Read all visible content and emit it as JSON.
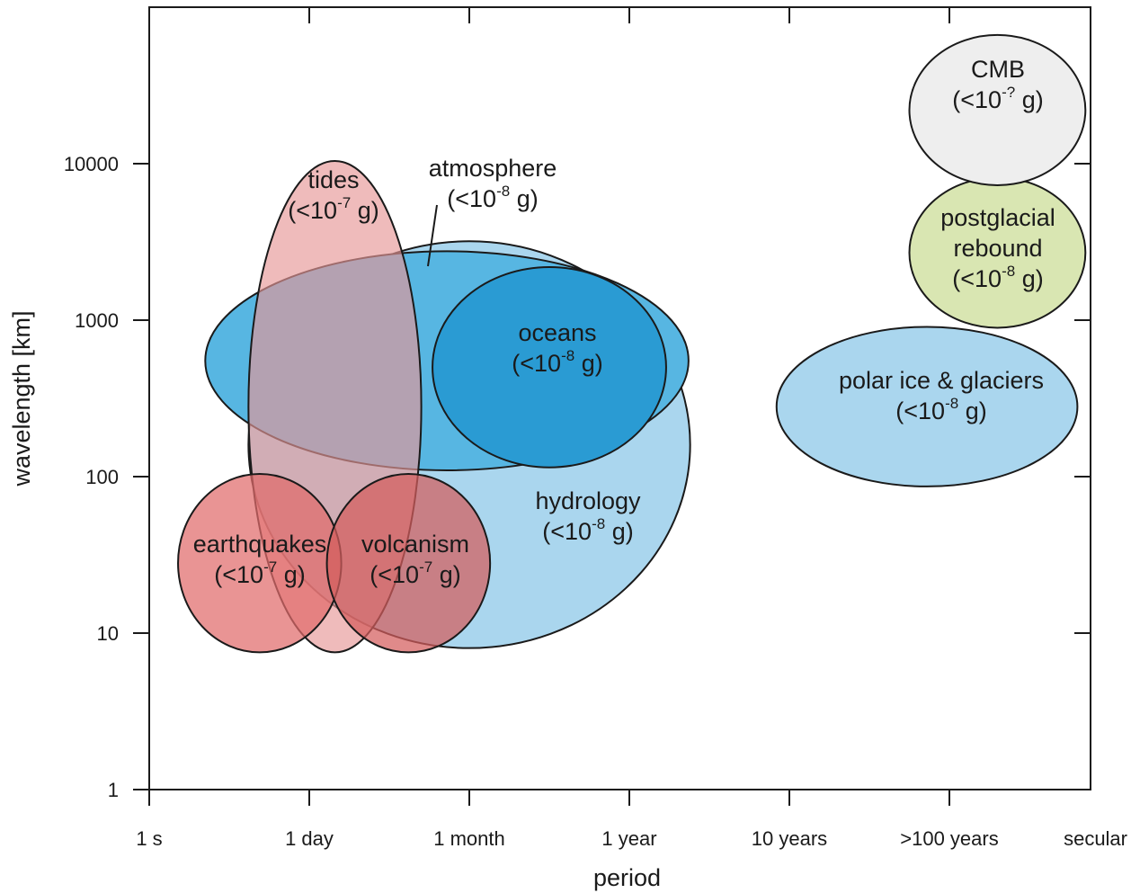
{
  "chart_data": {
    "type": "region-ellipse",
    "xlabel": "period",
    "ylabel": "wavelength [km]",
    "x_axis": {
      "scale": "categorical",
      "ticks": [
        "1 s",
        "1 day",
        "1 month",
        "1 year",
        "10 years",
        ">100 years",
        "secular"
      ]
    },
    "y_axis": {
      "scale": "log",
      "ylim": [
        1,
        100000
      ],
      "ticks": [
        {
          "value": 1,
          "label": "1"
        },
        {
          "value": 10,
          "label": "10"
        },
        {
          "value": 100,
          "label": "100"
        },
        {
          "value": 1000,
          "label": "1000"
        },
        {
          "value": 10000,
          "label": "10000"
        }
      ]
    },
    "regions": [
      {
        "name": "hydrology",
        "label": [
          "hydrology",
          "(<10",
          "-8",
          " g)"
        ],
        "x_center_tick": 2.0,
        "x_half_span_ticks": 1.38,
        "y_center": 160,
        "y_log_half_span": 1.3,
        "color": "#aad6ee"
      },
      {
        "name": "atmosphere",
        "label": [
          "atmosphere",
          "(<10",
          "-8",
          " g)"
        ],
        "x_center_tick": 1.86,
        "x_half_span_ticks": 1.51,
        "y_center": 550,
        "y_log_half_span": 0.7,
        "color": "#57b6e2"
      },
      {
        "name": "oceans",
        "label": [
          "oceans",
          "(<10",
          "-8",
          " g)"
        ],
        "x_center_tick": 2.5,
        "x_half_span_ticks": 0.73,
        "y_center": 500,
        "y_log_half_span": 0.64,
        "color": "#2a9bd3"
      },
      {
        "name": "tides",
        "label": [
          "tides",
          "(<10",
          "-7",
          " g)"
        ],
        "x_center_tick": 1.16,
        "x_half_span_ticks": 0.54,
        "y_center": 280,
        "y_log_half_span": 1.57,
        "color": "#e79696",
        "opacity": 0.65
      },
      {
        "name": "earthquakes",
        "label": [
          "earthquakes",
          "(<10",
          "-7",
          " g)"
        ],
        "x_center_tick": 0.69,
        "x_half_span_ticks": 0.51,
        "y_center": 28,
        "y_log_half_span": 0.57,
        "color": "#e06b6b",
        "opacity": 0.72
      },
      {
        "name": "volcanism",
        "label": [
          "volcanism",
          "(<10",
          "-7",
          " g)"
        ],
        "x_center_tick": 1.62,
        "x_half_span_ticks": 0.51,
        "y_center": 28,
        "y_log_half_span": 0.57,
        "color": "#d45d5d",
        "opacity": 0.72
      },
      {
        "name": "polar ice & glaciers",
        "label": [
          "polar ice & glaciers",
          "(<10",
          "-8",
          " g)"
        ],
        "x_center_tick": 4.86,
        "x_half_span_ticks": 0.94,
        "y_center": 280,
        "y_log_half_span": 0.51,
        "color": "#aad6ee"
      },
      {
        "name": "postglacial rebound",
        "label": [
          "postglacial",
          "rebound",
          "(<10",
          "-8",
          " g)"
        ],
        "x_center_tick": 5.3,
        "x_half_span_ticks": 0.55,
        "y_center": 2700,
        "y_log_half_span": 0.48,
        "color": "#d9e6b2"
      },
      {
        "name": "CMB",
        "label": [
          "CMB",
          "(<10",
          "-?",
          " g)"
        ],
        "x_center_tick": 5.3,
        "x_half_span_ticks": 0.55,
        "y_center": 22000,
        "y_log_half_span": 0.48,
        "color": "#eeeeee"
      }
    ],
    "annotations": [
      {
        "target": "atmosphere",
        "type": "leader-line"
      }
    ],
    "grid": false,
    "legend": "none"
  }
}
